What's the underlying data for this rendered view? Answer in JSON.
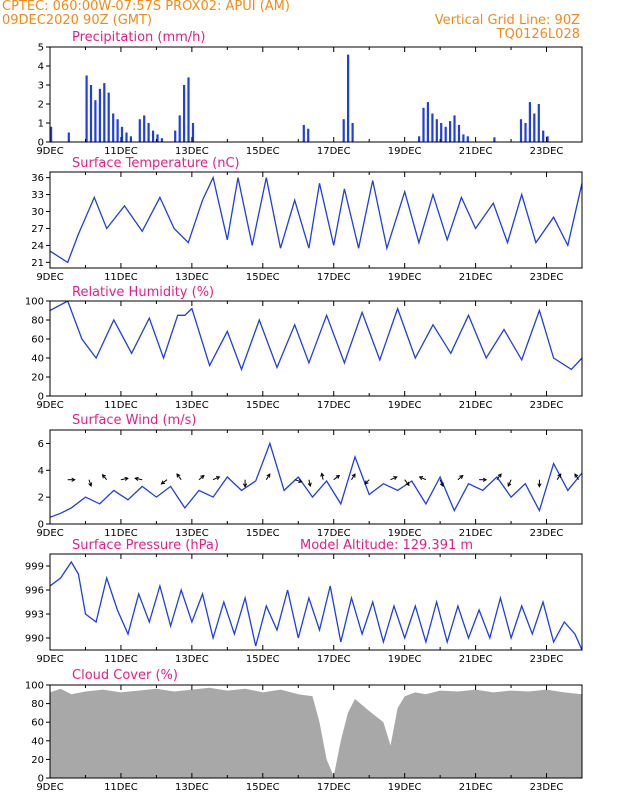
{
  "header": {
    "line1_left": "CPTEC:   060:00W-07:57S   PROX02: APUI (AM)",
    "line2_left": "09DEC2020 90Z (GMT)",
    "line1_right": "Vertical Grid Line: 90Z",
    "line2_right": "TQ0126L028"
  },
  "colors": {
    "header": "#f08a1c",
    "title": "#e0218a",
    "line": "#1f3fe0",
    "cloud": "#a8a8a8",
    "arrow": "#000000"
  },
  "chart_data": [
    {
      "id": "precip",
      "type": "bar",
      "title": "Precipitation (mm/h)",
      "ylim": [
        0,
        5
      ],
      "yticks": [
        "0",
        "1",
        "2",
        "3",
        "4",
        "5"
      ],
      "xticks": [
        "9DEC",
        "11DEC",
        "13DEC",
        "15DEC",
        "17DEC",
        "19DEC",
        "21DEC",
        "23DEC"
      ],
      "x": [
        0.0,
        0.5,
        1.0,
        1.125,
        1.25,
        1.375,
        1.5,
        1.625,
        1.75,
        1.875,
        2.0,
        2.125,
        2.25,
        2.5,
        2.625,
        2.75,
        2.875,
        3.0,
        3.125,
        3.5,
        3.625,
        3.75,
        3.875,
        4.0,
        7.125,
        7.25,
        8.25,
        8.375,
        8.5,
        10.375,
        10.5,
        10.625,
        10.75,
        10.875,
        11.0,
        11.125,
        11.25,
        11.375,
        11.5,
        11.625,
        11.75,
        12.5,
        13.25,
        13.375,
        13.5,
        13.625,
        13.75,
        13.875,
        14.0
      ],
      "values": [
        0.8,
        0.5,
        3.5,
        3.0,
        2.2,
        2.8,
        3.1,
        2.6,
        1.5,
        1.2,
        0.8,
        0.5,
        0.3,
        1.2,
        1.4,
        1.0,
        0.6,
        0.4,
        0.2,
        0.6,
        1.4,
        3.0,
        3.4,
        1.0,
        0.9,
        0.7,
        1.2,
        4.6,
        1.0,
        0.3,
        1.8,
        2.1,
        1.5,
        1.2,
        1.0,
        0.8,
        1.1,
        1.4,
        0.9,
        0.4,
        0.3,
        0.25,
        1.2,
        1.0,
        2.1,
        1.5,
        2.0,
        0.6,
        0.3
      ]
    },
    {
      "id": "temp",
      "type": "line",
      "title": "Surface Temperature (nC)",
      "ylim": [
        20,
        37
      ],
      "yticks": [
        "21",
        "24",
        "27",
        "30",
        "33",
        "36"
      ],
      "xticks": [
        "9DEC",
        "11DEC",
        "13DEC",
        "15DEC",
        "17DEC",
        "19DEC",
        "21DEC",
        "23DEC"
      ],
      "x": [
        0,
        0.5,
        0.8,
        1.25,
        1.6,
        2.1,
        2.6,
        3.1,
        3.5,
        3.9,
        4.3,
        4.6,
        5.0,
        5.3,
        5.7,
        6.1,
        6.5,
        6.9,
        7.3,
        7.6,
        8.0,
        8.3,
        8.7,
        9.1,
        9.5,
        10.0,
        10.4,
        10.8,
        11.2,
        11.6,
        12.0,
        12.5,
        12.9,
        13.3,
        13.7,
        14.2,
        14.6,
        15.0
      ],
      "y": [
        23.0,
        21.0,
        26.0,
        32.5,
        27.0,
        31.0,
        26.5,
        32.5,
        27.0,
        24.5,
        32.0,
        36.0,
        25.0,
        36.0,
        24.0,
        36.0,
        23.5,
        32.0,
        23.5,
        35.0,
        24.0,
        34.0,
        23.5,
        35.5,
        23.5,
        33.5,
        24.5,
        33.0,
        25.0,
        32.5,
        27.0,
        31.5,
        24.5,
        33.0,
        24.5,
        29.0,
        24.0,
        35.0
      ]
    },
    {
      "id": "rh",
      "type": "line",
      "title": "Relative Humidity (%)",
      "ylim": [
        0,
        100
      ],
      "yticks": [
        "0",
        "20",
        "40",
        "60",
        "80",
        "100"
      ],
      "xticks": [
        "9DEC",
        "11DEC",
        "13DEC",
        "15DEC",
        "17DEC",
        "19DEC",
        "21DEC",
        "23DEC"
      ],
      "x": [
        0,
        0.5,
        0.9,
        1.3,
        1.8,
        2.3,
        2.8,
        3.2,
        3.6,
        3.8,
        4.0,
        4.5,
        5.0,
        5.4,
        5.9,
        6.4,
        6.9,
        7.3,
        7.8,
        8.3,
        8.8,
        9.3,
        9.8,
        10.3,
        10.8,
        11.3,
        11.8,
        12.3,
        12.8,
        13.3,
        13.8,
        14.2,
        14.7,
        15.0
      ],
      "y": [
        90,
        100,
        60,
        40,
        80,
        45,
        82,
        40,
        85,
        85,
        92,
        32,
        68,
        28,
        80,
        30,
        75,
        35,
        85,
        35,
        88,
        38,
        92,
        40,
        75,
        45,
        85,
        40,
        70,
        38,
        90,
        40,
        28,
        40
      ]
    },
    {
      "id": "wind",
      "type": "line",
      "title": "Surface Wind (m/s)",
      "ylim": [
        0,
        7
      ],
      "yticks": [
        "0",
        "2",
        "4",
        "6"
      ],
      "xticks": [
        "9DEC",
        "11DEC",
        "13DEC",
        "15DEC",
        "17DEC",
        "19DEC",
        "21DEC",
        "23DEC"
      ],
      "x": [
        0,
        0.3,
        0.6,
        1.0,
        1.4,
        1.8,
        2.2,
        2.6,
        3.0,
        3.4,
        3.8,
        4.2,
        4.6,
        5.0,
        5.4,
        5.8,
        6.2,
        6.6,
        7.0,
        7.4,
        7.8,
        8.2,
        8.6,
        9.0,
        9.4,
        9.8,
        10.2,
        10.6,
        11.0,
        11.4,
        11.8,
        12.2,
        12.6,
        13.0,
        13.4,
        13.8,
        14.2,
        14.6,
        15.0
      ],
      "y": [
        0.5,
        0.8,
        1.2,
        2.0,
        1.5,
        2.5,
        1.8,
        2.8,
        2.0,
        2.8,
        1.2,
        2.5,
        2.0,
        3.5,
        2.5,
        3.2,
        6.0,
        2.5,
        3.5,
        2.0,
        3.2,
        1.5,
        5.0,
        2.2,
        3.0,
        2.5,
        3.2,
        1.5,
        3.5,
        1.0,
        3.0,
        2.5,
        3.5,
        2.0,
        3.0,
        1.0,
        4.5,
        2.5,
        3.8
      ],
      "arrow_x": [
        0.5,
        1.1,
        1.6,
        2.0,
        2.6,
        3.3,
        3.7,
        4.2,
        4.6,
        5.5,
        6.1,
        6.9,
        7.3,
        7.7,
        8.0,
        8.5,
        9.0,
        9.6,
        10.0,
        10.6,
        11.0,
        11.5,
        12.1,
        12.6,
        13.0,
        13.8,
        14.3,
        14.9
      ],
      "arrow_u": [
        1.0,
        0.3,
        -0.6,
        1.0,
        -1.0,
        -0.8,
        -0.6,
        0.7,
        0.9,
        0.0,
        0.5,
        1.0,
        0.2,
        -0.2,
        0.8,
        0.5,
        -0.6,
        0.9,
        0.6,
        -0.9,
        0.4,
        0.7,
        1.0,
        0.6,
        -0.4,
        0.0,
        0.5,
        -0.5
      ],
      "arrow_v": [
        0.0,
        -0.9,
        0.7,
        0.2,
        0.2,
        -0.6,
        0.8,
        0.6,
        0.4,
        -1.0,
        0.8,
        -0.3,
        -0.9,
        0.9,
        0.6,
        0.8,
        -0.6,
        0.4,
        -0.8,
        0.4,
        -0.9,
        0.6,
        0.0,
        0.8,
        -0.9,
        -1.0,
        0.8,
        0.8
      ]
    },
    {
      "id": "pressure",
      "type": "line",
      "title": "Surface Pressure (hPa)",
      "subtitle": "Model Altitude: 129.391 m",
      "ylim": [
        988.5,
        1000.5
      ],
      "yticks": [
        "990",
        "993",
        "996",
        "999"
      ],
      "xticks": [
        "9DEC",
        "11DEC",
        "13DEC",
        "15DEC",
        "17DEC",
        "19DEC",
        "21DEC",
        "23DEC"
      ],
      "x": [
        0,
        0.3,
        0.6,
        0.8,
        1.0,
        1.3,
        1.6,
        1.9,
        2.2,
        2.5,
        2.8,
        3.1,
        3.4,
        3.7,
        4.0,
        4.3,
        4.6,
        4.9,
        5.2,
        5.5,
        5.8,
        6.1,
        6.4,
        6.7,
        7.0,
        7.3,
        7.6,
        7.9,
        8.2,
        8.5,
        8.8,
        9.1,
        9.4,
        9.7,
        10.0,
        10.3,
        10.6,
        10.9,
        11.2,
        11.5,
        11.8,
        12.1,
        12.4,
        12.7,
        13.0,
        13.3,
        13.6,
        13.9,
        14.2,
        14.5,
        14.8,
        15.0
      ],
      "y": [
        996.5,
        997.5,
        999.5,
        998.0,
        993.0,
        992.0,
        997.5,
        993.5,
        990.5,
        995.5,
        992.0,
        996.5,
        991.5,
        996.0,
        992.0,
        995.5,
        990.0,
        994.5,
        990.5,
        995.0,
        989.0,
        994.0,
        991.0,
        996.0,
        990.0,
        995.0,
        991.0,
        996.5,
        989.5,
        995.0,
        990.5,
        994.5,
        989.5,
        994.0,
        990.0,
        994.0,
        989.5,
        994.5,
        989.5,
        994.0,
        990.0,
        993.5,
        990.0,
        995.0,
        990.0,
        994.0,
        990.5,
        994.5,
        989.5,
        992.0,
        990.5,
        988.5
      ]
    },
    {
      "id": "cloud",
      "type": "area",
      "title": "Cloud Cover (%)",
      "ylim": [
        0,
        100
      ],
      "yticks": [
        "0",
        "20",
        "40",
        "60",
        "80",
        "100"
      ],
      "xticks": [
        "9DEC",
        "11DEC",
        "13DEC",
        "15DEC",
        "17DEC",
        "19DEC",
        "21DEC",
        "23DEC"
      ],
      "x": [
        0,
        0.3,
        0.6,
        1.0,
        1.5,
        2.0,
        2.5,
        3.0,
        3.5,
        4.0,
        4.5,
        5.0,
        5.5,
        6.0,
        6.5,
        7.0,
        7.4,
        7.6,
        7.8,
        8.0,
        8.2,
        8.4,
        8.6,
        9.0,
        9.4,
        9.6,
        9.8,
        10.0,
        10.3,
        10.6,
        11.0,
        11.5,
        12.0,
        12.5,
        13.0,
        13.5,
        14.0,
        14.5,
        15.0
      ],
      "y": [
        92,
        96,
        90,
        93,
        95,
        92,
        94,
        96,
        93,
        95,
        97,
        94,
        96,
        92,
        95,
        90,
        88,
        60,
        20,
        2,
        40,
        70,
        85,
        72,
        60,
        35,
        75,
        88,
        92,
        90,
        94,
        93,
        95,
        92,
        94,
        93,
        95,
        92,
        90
      ]
    }
  ]
}
